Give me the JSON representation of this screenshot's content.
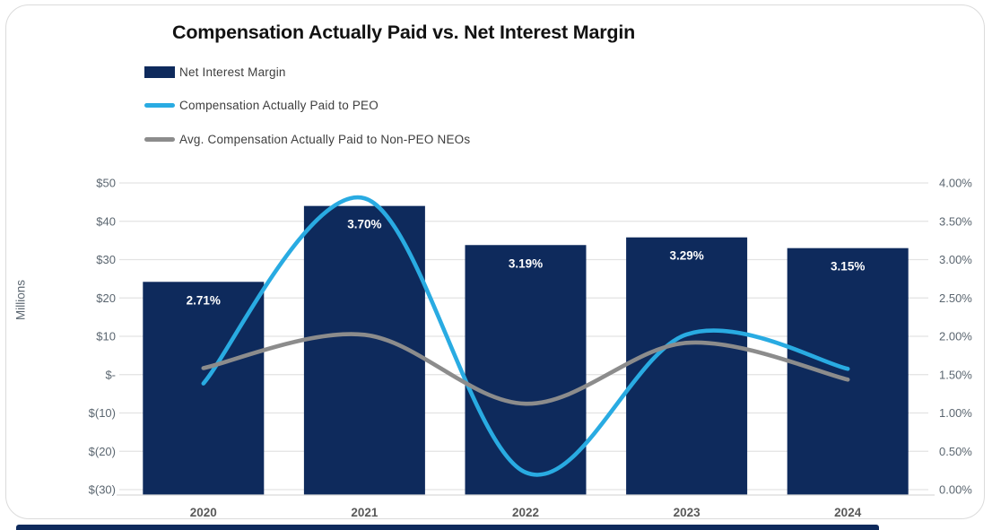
{
  "chart_data": {
    "type": "combo",
    "title": "Compensation Actually Paid vs. Net Interest Margin",
    "categories": [
      "2020",
      "2021",
      "2022",
      "2023",
      "2024"
    ],
    "series": [
      {
        "name": "Net Interest Margin",
        "type": "bar",
        "axis": "right",
        "color": "#0E2A5C",
        "values": [
          2.71,
          3.7,
          3.19,
          3.29,
          3.15
        ],
        "labels": [
          "2.71%",
          "3.70%",
          "3.19%",
          "3.29%",
          "3.15%"
        ]
      },
      {
        "name": "Compensation Actually Paid to PEO",
        "type": "line",
        "axis": "left",
        "color": "#29ABE2",
        "values": [
          -2.3,
          46.0,
          -25.5,
          10.5,
          1.5
        ]
      },
      {
        "name": "Avg. Compensation Actually Paid to Non-PEO NEOs",
        "type": "line",
        "axis": "left",
        "color": "#8C8C8C",
        "values": [
          1.7,
          10.4,
          -7.6,
          8.3,
          -1.3
        ]
      }
    ],
    "left_axis": {
      "label": "Millions",
      "min": -30,
      "max": 50,
      "ticks": [
        "$50",
        "$40",
        "$30",
        "$20",
        "$10",
        "$-",
        "$(10)",
        "$(20)",
        "$(30)"
      ]
    },
    "right_axis": {
      "min": 0,
      "max": 4,
      "ticks": [
        "4.00%",
        "3.50%",
        "3.00%",
        "2.50%",
        "2.00%",
        "1.50%",
        "1.00%",
        "0.50%",
        "0.00%"
      ]
    },
    "grid": true,
    "legend_position": "top-left",
    "colors": {
      "grid": "#E3E3E3",
      "axis_line": "#D9D9D9",
      "axis_text": "#5B6670",
      "year_text": "#595959",
      "bar_label_text": "#FFFFFF",
      "strip": "#0E2A5C"
    }
  }
}
